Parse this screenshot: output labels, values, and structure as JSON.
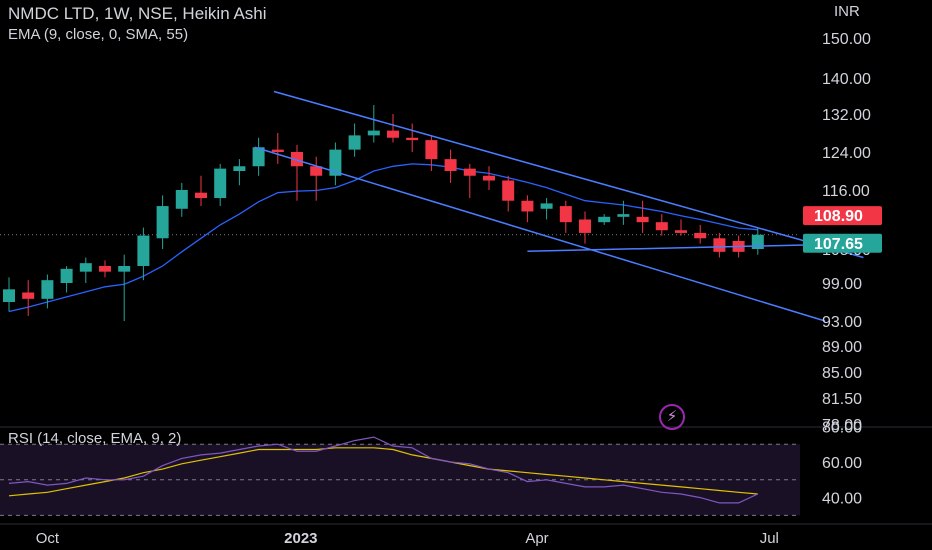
{
  "header": {
    "title": "NMDC LTD, 1W, NSE, Heikin Ashi",
    "indicator": "EMA (9, close, 0, SMA, 55)",
    "currency": "INR"
  },
  "rsi_header": {
    "label": "RSI (14, close, EMA, 9, 2)"
  },
  "colors": {
    "up": "#26a69a",
    "down": "#f23645",
    "ema": "#2962ff",
    "trendline": "#4a7dff",
    "rsi": "#7e57c2",
    "rsi_ma": "#e0c200"
  },
  "icons": {
    "alert": "lightning-bolt-icon"
  },
  "chart_data": [
    {
      "type": "candlestick",
      "price_ticks": [
        "150.00",
        "140.00",
        "132.00",
        "124.00",
        "116.00",
        "105.00",
        "99.00",
        "93.00",
        "89.00",
        "85.00",
        "81.50",
        "78.00"
      ],
      "price_tick_values": [
        150,
        140,
        132,
        124,
        116,
        105,
        99,
        93,
        89,
        85,
        81.5,
        78
      ],
      "price_labels": [
        {
          "text": "108.90",
          "value": 108.9,
          "color": "#f23645"
        },
        {
          "text": "107.65",
          "value": 107.65,
          "color": "#26a69a"
        }
      ],
      "time_ticks": [
        "Oct",
        "2023",
        "Apr",
        "Jul"
      ],
      "ohlc": [
        [
          96.0,
          100.0,
          94.5,
          98.0
        ],
        [
          97.5,
          99.5,
          93.8,
          96.5
        ],
        [
          96.5,
          100.5,
          95.0,
          99.5
        ],
        [
          99.0,
          102.0,
          97.5,
          101.5
        ],
        [
          101.0,
          103.5,
          99.0,
          102.5
        ],
        [
          102.0,
          103.0,
          100.0,
          101.0
        ],
        [
          101.0,
          104.0,
          93.0,
          102.0
        ],
        [
          102.0,
          109.0,
          99.5,
          107.5
        ],
        [
          107.0,
          115.0,
          105.0,
          113.0
        ],
        [
          112.5,
          117.5,
          111.0,
          116.0
        ],
        [
          115.5,
          119.0,
          113.0,
          114.5
        ],
        [
          114.5,
          121.5,
          113.0,
          120.5
        ],
        [
          120.0,
          122.5,
          117.0,
          121.0
        ],
        [
          121.0,
          127.0,
          119.0,
          125.0
        ],
        [
          124.5,
          128.0,
          121.5,
          124.0
        ],
        [
          124.0,
          125.5,
          114.0,
          121.0
        ],
        [
          121.0,
          123.0,
          114.0,
          119.0
        ],
        [
          119.0,
          126.0,
          117.0,
          124.5
        ],
        [
          124.5,
          130.0,
          123.0,
          127.5
        ],
        [
          127.5,
          134.0,
          126.0,
          128.5
        ],
        [
          128.5,
          132.0,
          126.0,
          127.0
        ],
        [
          127.0,
          130.0,
          124.0,
          126.5
        ],
        [
          126.5,
          127.5,
          120.0,
          122.5
        ],
        [
          122.5,
          124.5,
          117.5,
          120.0
        ],
        [
          120.5,
          121.5,
          114.5,
          119.0
        ],
        [
          119.0,
          121.0,
          116.0,
          118.0
        ],
        [
          118.0,
          119.0,
          112.0,
          114.0
        ],
        [
          114.0,
          115.0,
          110.0,
          112.0
        ],
        [
          112.5,
          114.5,
          110.5,
          113.5
        ],
        [
          113.0,
          114.0,
          108.0,
          110.0
        ],
        [
          110.5,
          112.0,
          106.0,
          108.0
        ],
        [
          110.0,
          111.5,
          109.5,
          111.0
        ],
        [
          111.0,
          114.0,
          109.5,
          111.5
        ],
        [
          111.0,
          114.0,
          108.0,
          110.0
        ],
        [
          110.0,
          111.5,
          107.5,
          108.5
        ],
        [
          108.5,
          110.5,
          107.5,
          108.0
        ],
        [
          108.0,
          109.5,
          106.0,
          107.0
        ],
        [
          107.0,
          108.0,
          103.5,
          104.5
        ],
        [
          106.5,
          107.5,
          103.5,
          104.5
        ],
        [
          105.0,
          109.0,
          104.0,
          107.65
        ]
      ],
      "ema": [
        94.5,
        95.2,
        96.0,
        96.8,
        97.6,
        98.4,
        98.8,
        100.2,
        102.0,
        104.5,
        107.0,
        109.5,
        111.5,
        113.8,
        115.5,
        115.8,
        115.9,
        116.5,
        118.0,
        120.0,
        121.0,
        121.5,
        121.3,
        120.8,
        120.0,
        119.5,
        118.6,
        117.6,
        116.5,
        115.2,
        114.0,
        113.6,
        113.2,
        112.6,
        112.0,
        111.2,
        110.5,
        109.7,
        108.9,
        108.6
      ],
      "trendlines": [
        {
          "from": [
            13.8,
            137.0
          ],
          "to": [
            44.5,
            103.5
          ]
        },
        {
          "from": [
            12.8,
            125.0
          ],
          "to": [
            42.5,
            93.0
          ]
        },
        {
          "from": [
            27.0,
            104.6
          ],
          "to": [
            44.5,
            106.0
          ]
        }
      ]
    },
    {
      "type": "line",
      "name": "RSI",
      "yticks": [
        "80.00",
        "60.00",
        "40.00"
      ],
      "ytick_values": [
        80,
        60,
        40
      ],
      "bands": [
        70,
        50,
        30
      ],
      "rsi": [
        48,
        49,
        47,
        48,
        51,
        50,
        50,
        52,
        58,
        62,
        64,
        65,
        67,
        69,
        70,
        66,
        66,
        69,
        72,
        74,
        69,
        68,
        62,
        60,
        59,
        56,
        54,
        49,
        50,
        48,
        46,
        46,
        47,
        45,
        43,
        42,
        40,
        37,
        37,
        42
      ],
      "rsi_ma": [
        41,
        42,
        43,
        45,
        47,
        49,
        51,
        54,
        56,
        59,
        61,
        63,
        65,
        67,
        67,
        67,
        67,
        68,
        68,
        68,
        67,
        64,
        62,
        60,
        58,
        56,
        55,
        54,
        53,
        52,
        51,
        50,
        49,
        48,
        47,
        46,
        45,
        44,
        43,
        42
      ]
    }
  ]
}
